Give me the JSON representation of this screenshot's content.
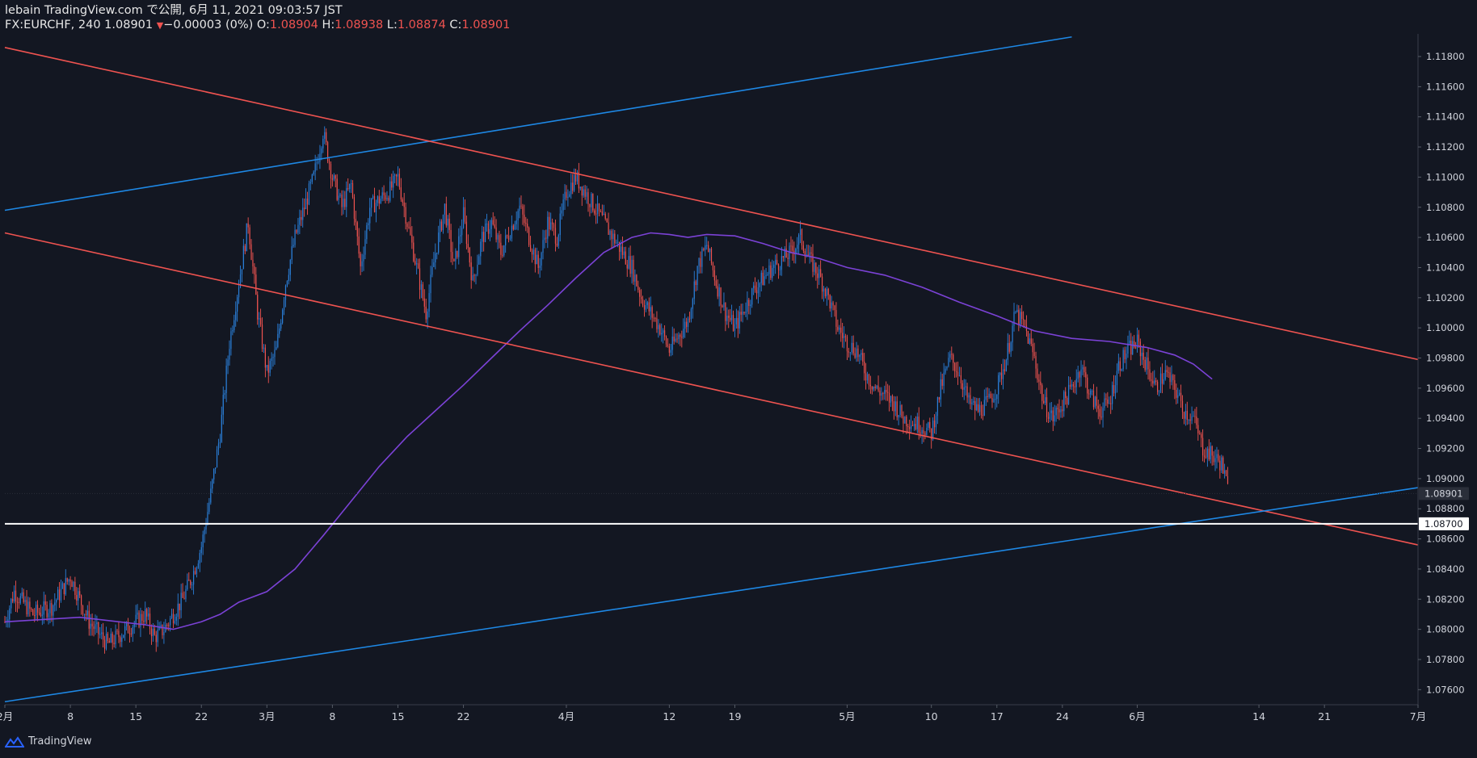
{
  "header": {
    "publish_line": "lebain TradingView.com で公開, 6月 11, 2021 09:03:57 JST",
    "symbol": "FX:EURCHF, 240",
    "last": "1.08901",
    "change": "−0.00003 (0%)",
    "o_label": "O:",
    "o_val": "1.08904",
    "h_label": "H:",
    "h_val": "1.08938",
    "l_label": "L:",
    "l_val": "1.08874",
    "c_label": "C:",
    "c_val": "1.08901"
  },
  "footer": {
    "brand": "TradingView"
  },
  "colors": {
    "bg": "#131722",
    "up": "#2a7fd9",
    "down": "#ef5350",
    "ma": "#7b42d6",
    "blue_line": "#1e88e5",
    "red_line": "#ef5350",
    "horizontal": "#ffffff"
  },
  "chart_data": {
    "type": "candlestick",
    "symbol": "FX:EURCHF",
    "timeframe": "240",
    "xlim_days": [
      0,
      151
    ],
    "ylim": [
      1.075,
      1.1195
    ],
    "y_ticks": [
      1.076,
      1.078,
      1.08,
      1.082,
      1.084,
      1.086,
      1.088,
      1.09,
      1.092,
      1.094,
      1.096,
      1.098,
      1.1,
      1.102,
      1.104,
      1.106,
      1.108,
      1.11,
      1.112,
      1.114,
      1.116,
      1.118
    ],
    "x_ticks": [
      {
        "day": 0,
        "label": "2月"
      },
      {
        "day": 7,
        "label": "8"
      },
      {
        "day": 14,
        "label": "15"
      },
      {
        "day": 21,
        "label": "22"
      },
      {
        "day": 28,
        "label": "3月"
      },
      {
        "day": 35,
        "label": "8"
      },
      {
        "day": 42,
        "label": "15"
      },
      {
        "day": 49,
        "label": "22"
      },
      {
        "day": 60,
        "label": "4月"
      },
      {
        "day": 71,
        "label": "12"
      },
      {
        "day": 78,
        "label": "19"
      },
      {
        "day": 90,
        "label": "5月"
      },
      {
        "day": 99,
        "label": "10"
      },
      {
        "day": 106,
        "label": "17"
      },
      {
        "day": 113,
        "label": "24"
      },
      {
        "day": 121,
        "label": "6月"
      },
      {
        "day": 134,
        "label": "14"
      },
      {
        "day": 141,
        "label": "21"
      },
      {
        "day": 151,
        "label": "7月"
      }
    ],
    "price_path": [
      [
        0,
        1.0805
      ],
      [
        1,
        1.0825
      ],
      [
        3,
        1.081
      ],
      [
        5,
        1.0815
      ],
      [
        7,
        1.0835
      ],
      [
        9,
        1.0805
      ],
      [
        11,
        1.079
      ],
      [
        13,
        1.08
      ],
      [
        15,
        1.081
      ],
      [
        16,
        1.0795
      ],
      [
        17,
        1.08
      ],
      [
        18,
        1.081
      ],
      [
        19,
        1.082
      ],
      [
        20,
        1.0835
      ],
      [
        21,
        1.0855
      ],
      [
        22,
        1.089
      ],
      [
        23,
        1.093
      ],
      [
        24,
        1.099
      ],
      [
        25,
        1.103
      ],
      [
        26,
        1.107
      ],
      [
        27,
        1.101
      ],
      [
        28,
        1.097
      ],
      [
        29,
        1.0985
      ],
      [
        30,
        1.103
      ],
      [
        31,
        1.106
      ],
      [
        32,
        1.108
      ],
      [
        33,
        1.11
      ],
      [
        34,
        1.113
      ],
      [
        35,
        1.11
      ],
      [
        36,
        1.108
      ],
      [
        37,
        1.1095
      ],
      [
        38,
        1.104
      ],
      [
        39,
        1.108
      ],
      [
        41,
        1.109
      ],
      [
        42,
        1.11
      ],
      [
        43,
        1.107
      ],
      [
        44,
        1.104
      ],
      [
        45,
        1.101
      ],
      [
        46,
        1.105
      ],
      [
        47,
        1.108
      ],
      [
        48,
        1.104
      ],
      [
        49,
        1.1075
      ],
      [
        50,
        1.103
      ],
      [
        51,
        1.106
      ],
      [
        52,
        1.107
      ],
      [
        53,
        1.105
      ],
      [
        55,
        1.108
      ],
      [
        56,
        1.106
      ],
      [
        57,
        1.104
      ],
      [
        58,
        1.107
      ],
      [
        59,
        1.106
      ],
      [
        60,
        1.109
      ],
      [
        61,
        1.11
      ],
      [
        62,
        1.109
      ],
      [
        63,
        1.108
      ],
      [
        64,
        1.107
      ],
      [
        65,
        1.106
      ],
      [
        67,
        1.104
      ],
      [
        68,
        1.102
      ],
      [
        69,
        1.101
      ],
      [
        70,
        1.1
      ],
      [
        71,
        1.0985
      ],
      [
        72,
        1.0995
      ],
      [
        73,
        1.1005
      ],
      [
        74,
        1.104
      ],
      [
        75,
        1.1055
      ],
      [
        76,
        1.103
      ],
      [
        77,
        1.101
      ],
      [
        78,
        1.1
      ],
      [
        80,
        1.1025
      ],
      [
        82,
        1.104
      ],
      [
        84,
        1.105
      ],
      [
        85,
        1.106
      ],
      [
        86,
        1.1045
      ],
      [
        87,
        1.1035
      ],
      [
        88,
        1.102
      ],
      [
        89,
        1.1
      ],
      [
        90,
        1.099
      ],
      [
        91,
        1.0985
      ],
      [
        92,
        1.097
      ],
      [
        93,
        1.096
      ],
      [
        94,
        1.0955
      ],
      [
        95,
        1.095
      ],
      [
        96,
        1.094
      ],
      [
        98,
        1.0935
      ],
      [
        99,
        1.093
      ],
      [
        100,
        1.096
      ],
      [
        101,
        1.098
      ],
      [
        102,
        1.097
      ],
      [
        103,
        1.095
      ],
      [
        104,
        1.0945
      ],
      [
        105,
        1.095
      ],
      [
        106,
        1.096
      ],
      [
        107,
        1.098
      ],
      [
        108,
        1.101
      ],
      [
        109,
        1.1
      ],
      [
        110,
        1.098
      ],
      [
        111,
        1.095
      ],
      [
        112,
        1.094
      ],
      [
        113,
        1.095
      ],
      [
        114,
        1.096
      ],
      [
        115,
        1.0975
      ],
      [
        116,
        1.0955
      ],
      [
        117,
        1.0945
      ],
      [
        118,
        1.095
      ],
      [
        119,
        1.0975
      ],
      [
        120,
        1.0985
      ],
      [
        121,
        1.099
      ],
      [
        122,
        1.0975
      ],
      [
        123,
        1.096
      ],
      [
        124,
        1.097
      ],
      [
        125,
        1.096
      ],
      [
        126,
        1.0945
      ],
      [
        127,
        1.094
      ],
      [
        128,
        1.092
      ],
      [
        129,
        1.0915
      ],
      [
        130,
        1.091
      ],
      [
        130.8,
        1.089
      ]
    ],
    "ma_path": [
      [
        0,
        1.0805
      ],
      [
        8,
        1.0808
      ],
      [
        15,
        1.0803
      ],
      [
        18,
        1.08
      ],
      [
        21,
        1.0805
      ],
      [
        23,
        1.081
      ],
      [
        25,
        1.0818
      ],
      [
        28,
        1.0825
      ],
      [
        31,
        1.084
      ],
      [
        34,
        1.0862
      ],
      [
        37,
        1.0885
      ],
      [
        40,
        1.0908
      ],
      [
        43,
        1.0928
      ],
      [
        46,
        1.0945
      ],
      [
        49,
        1.0962
      ],
      [
        52,
        1.098
      ],
      [
        55,
        1.0998
      ],
      [
        58,
        1.1015
      ],
      [
        61,
        1.1033
      ],
      [
        64,
        1.105
      ],
      [
        67,
        1.106
      ],
      [
        69,
        1.1063
      ],
      [
        71,
        1.1062
      ],
      [
        73,
        1.106
      ],
      [
        75,
        1.1062
      ],
      [
        78,
        1.1061
      ],
      [
        81,
        1.1056
      ],
      [
        84,
        1.105
      ],
      [
        87,
        1.1046
      ],
      [
        90,
        1.104
      ],
      [
        94,
        1.1035
      ],
      [
        98,
        1.1027
      ],
      [
        102,
        1.1017
      ],
      [
        106,
        1.1008
      ],
      [
        110,
        1.0998
      ],
      [
        114,
        1.0993
      ],
      [
        118,
        1.0991
      ],
      [
        122,
        1.0987
      ],
      [
        125,
        1.0982
      ],
      [
        127,
        1.0976
      ],
      [
        129,
        1.0966
      ]
    ],
    "trendlines": [
      {
        "name": "upper-channel-top",
        "color": "blue",
        "from": [
          0,
          1.1078
        ],
        "to": [
          114,
          1.1193
        ]
      },
      {
        "name": "descending-channel-top",
        "color": "red",
        "from": [
          0,
          1.1186
        ],
        "to": [
          151,
          1.0979
        ]
      },
      {
        "name": "descending-channel-bottom",
        "color": "red",
        "from": [
          0,
          1.1063
        ],
        "to": [
          151,
          1.0856
        ]
      },
      {
        "name": "ascending-support",
        "color": "blue",
        "from": [
          0,
          1.0752
        ],
        "to": [
          151,
          1.0894
        ]
      }
    ],
    "horizontal_line": 1.087,
    "price_labels": [
      {
        "value": 1.08901,
        "label": "1.08901",
        "style": "current"
      },
      {
        "value": 1.087,
        "label": "1.08700",
        "style": "highlight"
      }
    ]
  }
}
